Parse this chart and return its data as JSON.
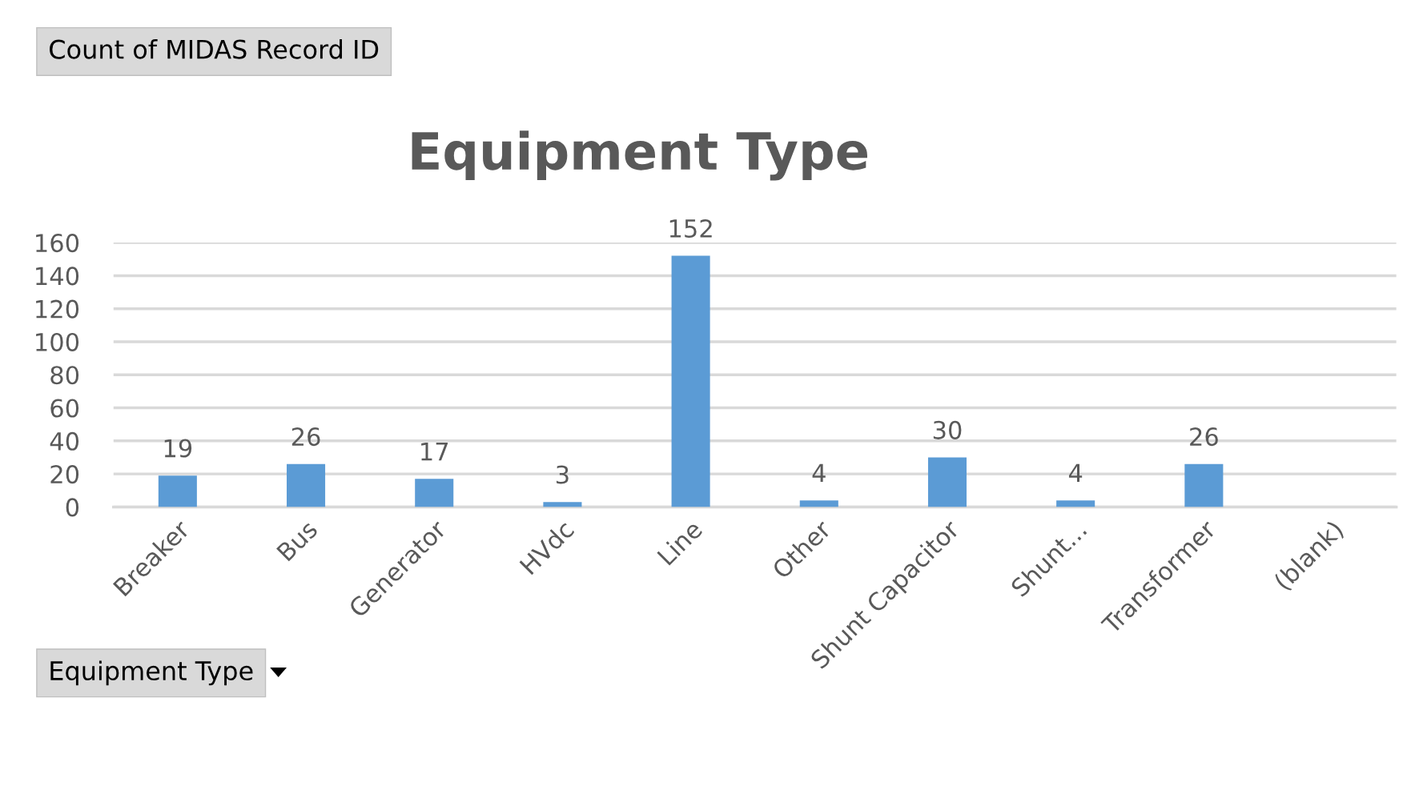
{
  "chart_data": {
    "type": "bar",
    "title": "Equipment Type",
    "categories": [
      "Breaker",
      "Bus",
      "Generator",
      "HVdc",
      "Line",
      "Other",
      "Shunt Capacitor",
      "Shunt...",
      "Transformer",
      "(blank)"
    ],
    "values": [
      19,
      26,
      17,
      3,
      152,
      4,
      30,
      4,
      26,
      null
    ],
    "color": "#5b9bd5",
    "ylim": [
      0,
      160
    ],
    "yticks": [
      0,
      20,
      40,
      60,
      80,
      100,
      120,
      140,
      160
    ],
    "grid": "y",
    "data_labels": true,
    "legend": false,
    "annotations": [
      "Count of MIDAS Record ID",
      "Equipment Type"
    ]
  }
}
